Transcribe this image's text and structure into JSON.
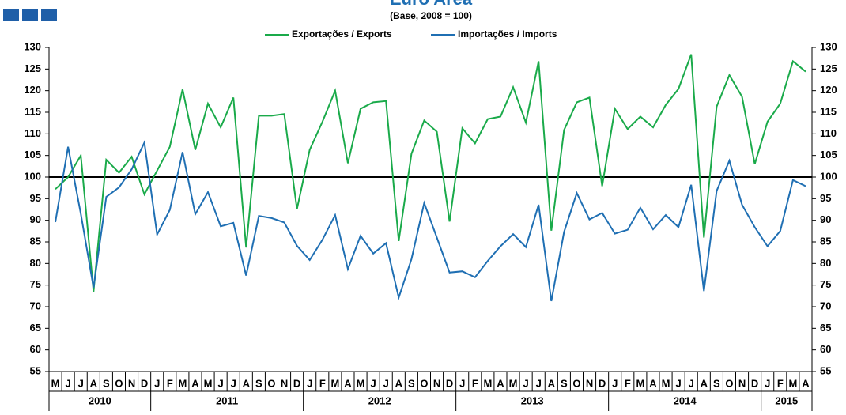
{
  "chart_data": {
    "type": "line",
    "title": "Euro Area",
    "subtitle": "(Base, 2008 = 100)",
    "categories": [
      "M",
      "J",
      "J",
      "A",
      "S",
      "O",
      "N",
      "D",
      "J",
      "F",
      "M",
      "A",
      "M",
      "J",
      "J",
      "A",
      "S",
      "O",
      "N",
      "D",
      "J",
      "F",
      "M",
      "A",
      "M",
      "J",
      "J",
      "A",
      "S",
      "O",
      "N",
      "D",
      "J",
      "F",
      "M",
      "A",
      "M",
      "J",
      "J",
      "A",
      "S",
      "O",
      "N",
      "D",
      "J",
      "F",
      "M",
      "A",
      "M",
      "J",
      "J",
      "A",
      "S",
      "O",
      "N",
      "D",
      "J",
      "F",
      "M",
      "A"
    ],
    "years": [
      "2010",
      "2011",
      "2012",
      "2013",
      "2014",
      "2015"
    ],
    "series": [
      {
        "name": "Exportações / Exports",
        "color": "#1aaa4a",
        "values": [
          97.2,
          100,
          105,
          73.5,
          104,
          101,
          104.7,
          96,
          101.5,
          107,
          120.3,
          106.3,
          117,
          111.5,
          118.4,
          83.7,
          114.2,
          114.2,
          114.6,
          92.6,
          106.3,
          112.8,
          120,
          103.2,
          115.8,
          117.3,
          117.6,
          85.2,
          105.4,
          113.1,
          110.5,
          89.7,
          111.3,
          107.8,
          113.4,
          114,
          120.8,
          112.6,
          126.8,
          87.6,
          110.9,
          117.3,
          118.4,
          97.9,
          115.8,
          111.1,
          114,
          111.5,
          116.7,
          120.4,
          128.4,
          86,
          116.3,
          123.6,
          118.6,
          103,
          112.8,
          117,
          126.8,
          124.4
        ]
      },
      {
        "name": "Importações / Imports",
        "color": "#1f6fb3",
        "values": [
          89.6,
          107,
          91.5,
          74.4,
          95.4,
          97.6,
          101.8,
          108,
          86.7,
          92.4,
          105.8,
          91.4,
          96.5,
          88.6,
          89.4,
          77.2,
          91,
          90.5,
          89.5,
          84.1,
          80.8,
          85.5,
          91.2,
          78.7,
          86.4,
          82.3,
          84.7,
          72.1,
          81,
          94,
          86,
          77.9,
          78.2,
          76.8,
          80.6,
          84,
          86.8,
          83.8,
          93.6,
          71.3,
          87.3,
          96.3,
          90.2,
          91.7,
          86.9,
          87.8,
          92.9,
          87.9,
          91.2,
          88.4,
          98.2,
          73.6,
          96.8,
          103.8,
          93.6,
          88.4,
          84,
          87.5,
          99.3,
          97.9
        ]
      }
    ],
    "reference_line": 100,
    "ylim": [
      55,
      130
    ],
    "yticks": [
      55,
      60,
      65,
      70,
      75,
      80,
      85,
      90,
      95,
      100,
      105,
      110,
      115,
      120,
      125,
      130
    ],
    "legend": "top"
  }
}
